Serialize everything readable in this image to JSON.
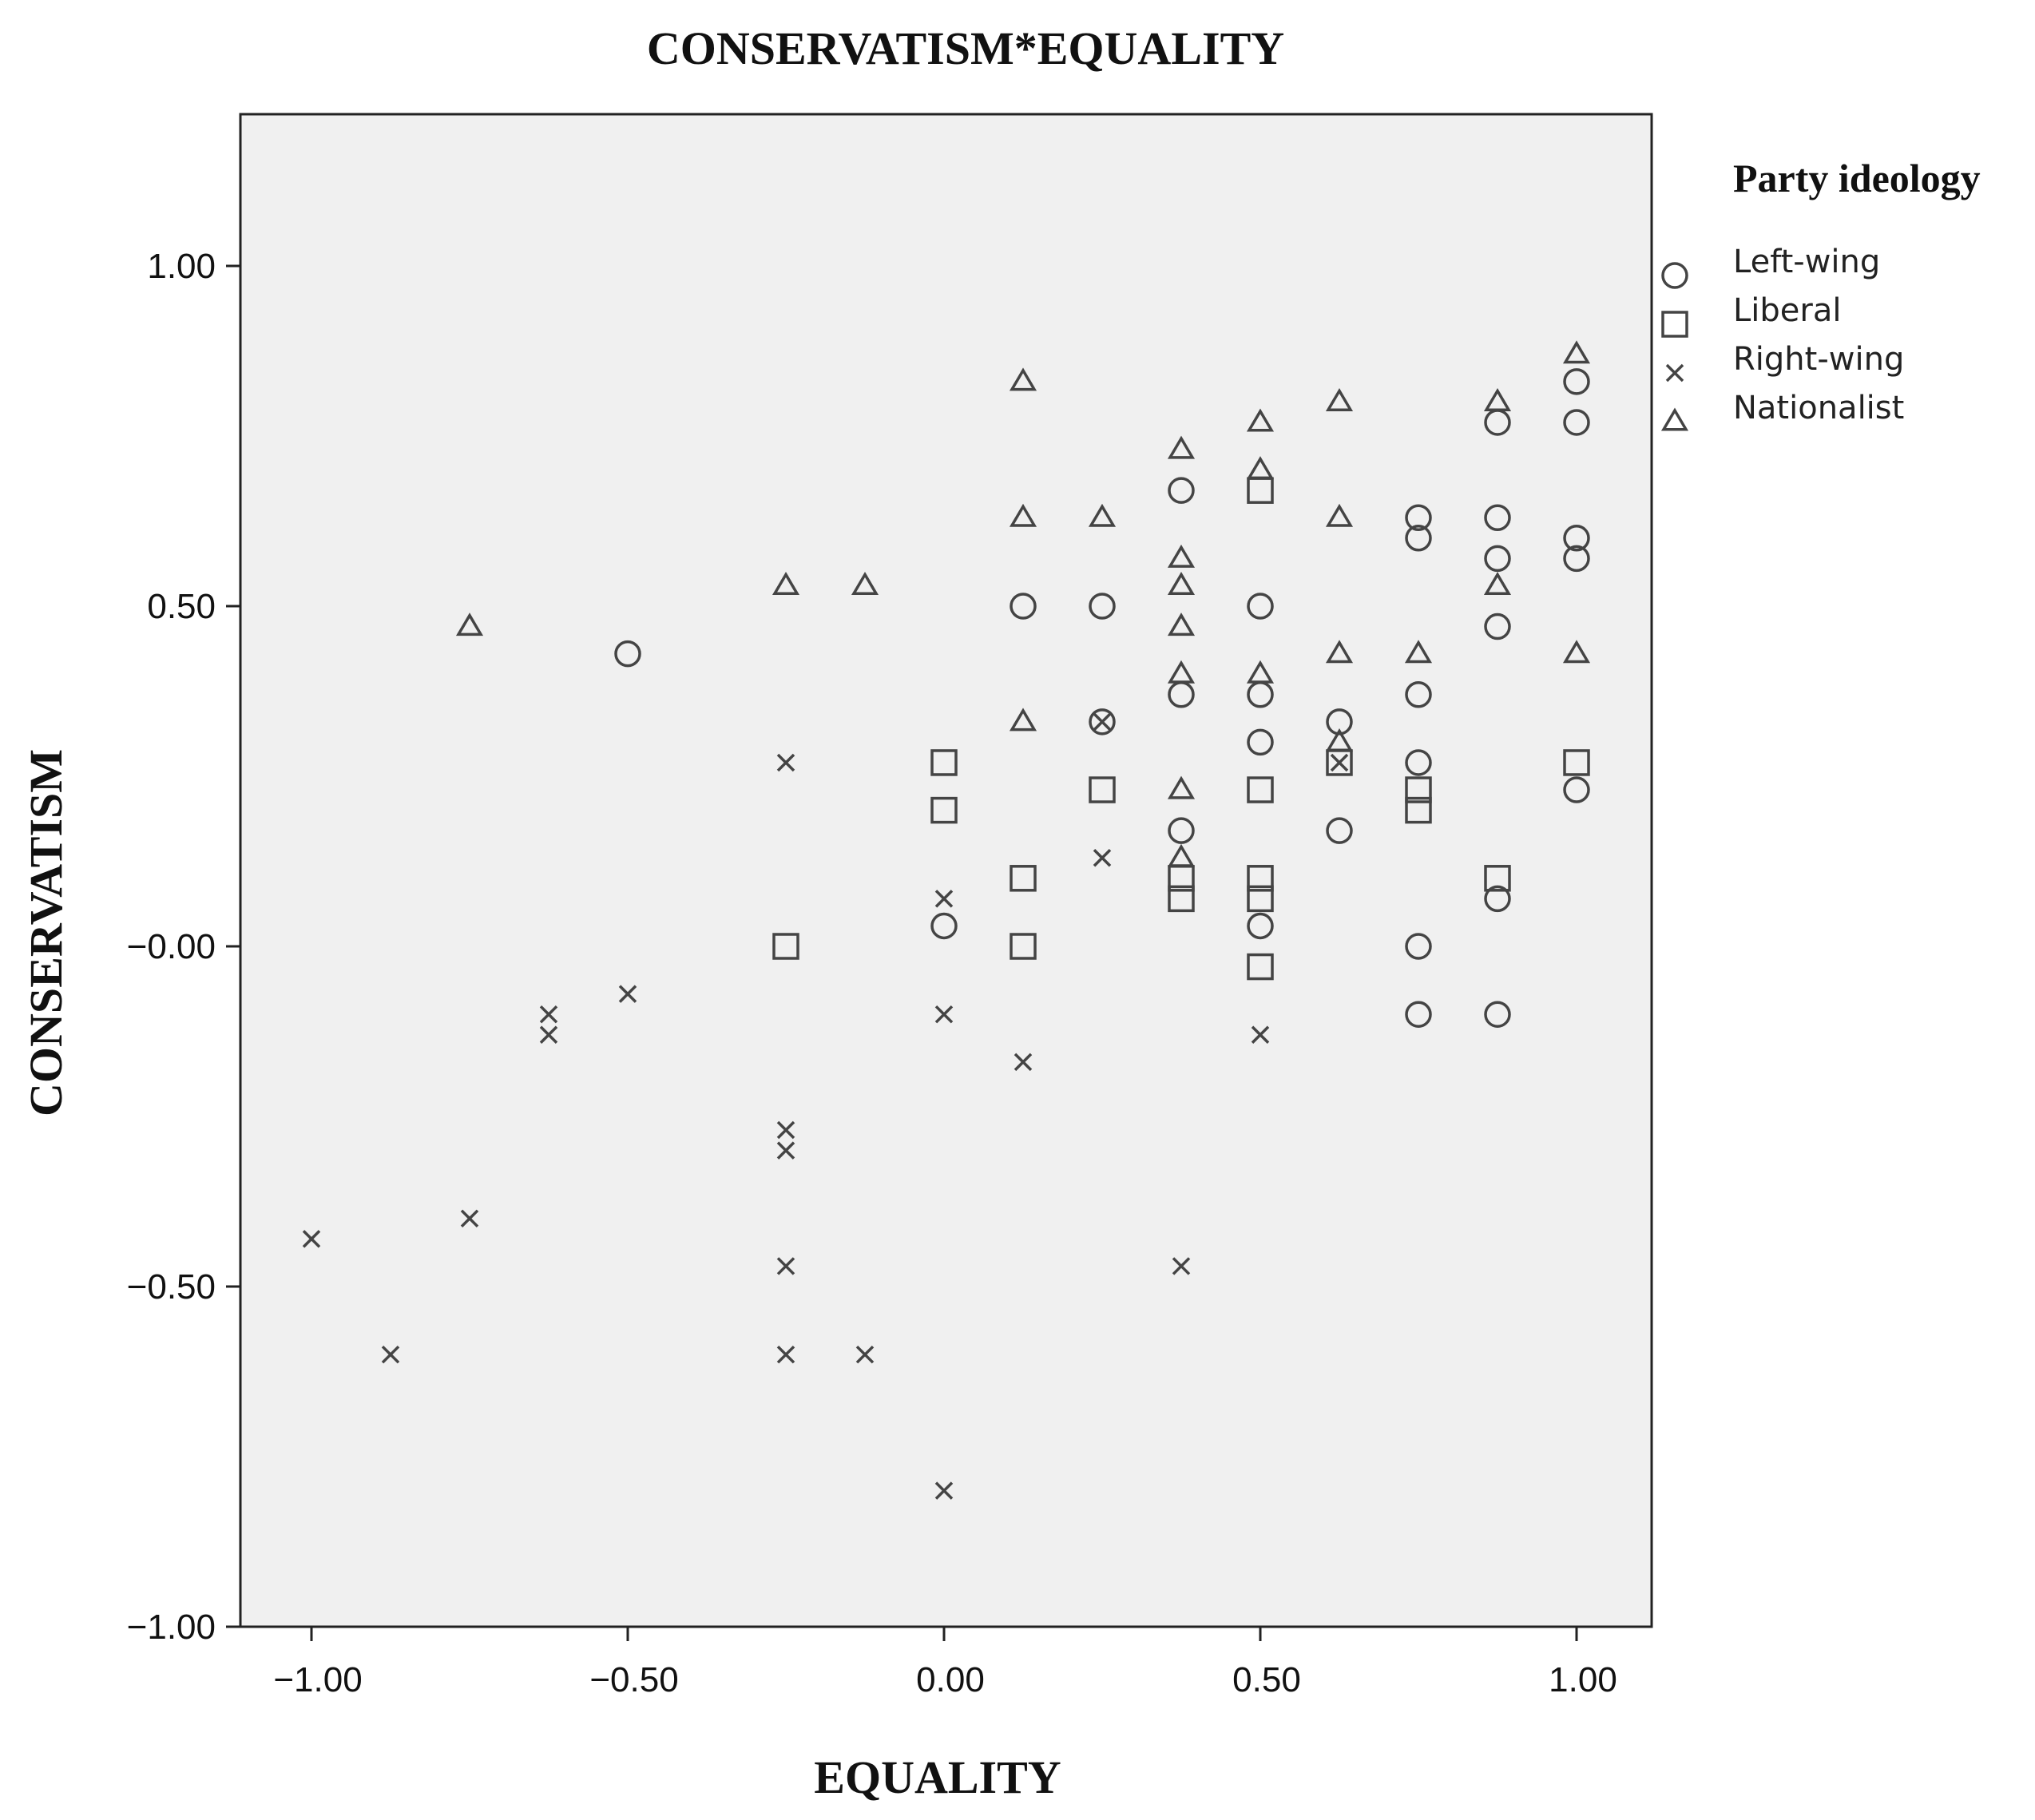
{
  "chart_data": {
    "type": "scatter",
    "title": "CONSERVATISM*EQUALITY",
    "xlabel": "EQUALITY",
    "ylabel": "CONSERVATISM",
    "xlim": [
      -1.1,
      1.1
    ],
    "ylim": [
      -1.0,
      1.22
    ],
    "x_ticks": [
      -1.0,
      -0.5,
      0.0,
      0.5,
      1.0
    ],
    "x_tick_labels": [
      "−1.00",
      "−0.50",
      "0.00",
      "0.50",
      "1.00"
    ],
    "y_ticks": [
      1.0,
      0.5,
      0.0,
      -0.5,
      -1.0
    ],
    "y_tick_labels": [
      "1.00",
      "0.50",
      "−0.00",
      "−0.50",
      "−1.00"
    ],
    "grid": false,
    "legend_title": "Party ideology",
    "legend_position": "right",
    "series": [
      {
        "name": "Left-wing",
        "marker": "circle",
        "points": [
          [
            -0.5,
            0.43
          ],
          [
            0.0,
            0.03
          ],
          [
            0.125,
            0.5
          ],
          [
            0.25,
            0.5
          ],
          [
            0.25,
            0.33
          ],
          [
            0.375,
            0.67
          ],
          [
            0.375,
            0.37
          ],
          [
            0.375,
            0.17
          ],
          [
            0.5,
            0.5
          ],
          [
            0.5,
            0.37
          ],
          [
            0.5,
            0.3
          ],
          [
            0.5,
            0.03
          ],
          [
            0.625,
            0.33
          ],
          [
            0.625,
            0.17
          ],
          [
            0.75,
            0.63
          ],
          [
            0.75,
            0.6
          ],
          [
            0.75,
            0.37
          ],
          [
            0.75,
            0.27
          ],
          [
            0.75,
            0.0
          ],
          [
            0.75,
            -0.1
          ],
          [
            0.875,
            0.77
          ],
          [
            0.875,
            0.63
          ],
          [
            0.875,
            0.57
          ],
          [
            0.875,
            0.47
          ],
          [
            0.875,
            0.07
          ],
          [
            0.875,
            -0.1
          ],
          [
            1.0,
            0.83
          ],
          [
            1.0,
            0.77
          ],
          [
            1.0,
            0.6
          ],
          [
            1.0,
            0.57
          ],
          [
            1.0,
            0.23
          ]
        ]
      },
      {
        "name": "Liberal",
        "marker": "square",
        "points": [
          [
            -0.25,
            0.0
          ],
          [
            0.0,
            0.27
          ],
          [
            0.0,
            0.2
          ],
          [
            0.125,
            0.1
          ],
          [
            0.125,
            0.0
          ],
          [
            0.25,
            0.23
          ],
          [
            0.375,
            0.1
          ],
          [
            0.375,
            0.07
          ],
          [
            0.5,
            0.67
          ],
          [
            0.5,
            0.23
          ],
          [
            0.5,
            0.1
          ],
          [
            0.5,
            0.07
          ],
          [
            0.5,
            -0.03
          ],
          [
            0.625,
            0.27
          ],
          [
            0.75,
            0.23
          ],
          [
            0.75,
            0.2
          ],
          [
            0.875,
            0.1
          ],
          [
            1.0,
            0.27
          ]
        ]
      },
      {
        "name": "Right-wing",
        "marker": "x",
        "points": [
          [
            -1.0,
            -0.43
          ],
          [
            -0.875,
            -0.6
          ],
          [
            -0.75,
            -0.4
          ],
          [
            -0.625,
            -0.1
          ],
          [
            -0.625,
            -0.13
          ],
          [
            -0.5,
            -0.07
          ],
          [
            -0.25,
            0.27
          ],
          [
            -0.25,
            -0.27
          ],
          [
            -0.25,
            -0.3
          ],
          [
            -0.25,
            -0.47
          ],
          [
            -0.25,
            -0.6
          ],
          [
            -0.125,
            -0.6
          ],
          [
            0.0,
            0.07
          ],
          [
            0.0,
            -0.1
          ],
          [
            0.0,
            -0.8
          ],
          [
            0.125,
            -0.17
          ],
          [
            0.25,
            0.13
          ],
          [
            0.25,
            0.33
          ],
          [
            0.375,
            -0.47
          ],
          [
            0.5,
            -0.13
          ],
          [
            0.625,
            0.27
          ]
        ]
      },
      {
        "name": "Nationalist",
        "marker": "triangle",
        "points": [
          [
            -0.75,
            0.47
          ],
          [
            -0.25,
            0.53
          ],
          [
            -0.125,
            0.53
          ],
          [
            0.125,
            0.83
          ],
          [
            0.125,
            0.63
          ],
          [
            0.125,
            0.33
          ],
          [
            0.25,
            0.63
          ],
          [
            0.375,
            0.73
          ],
          [
            0.375,
            0.57
          ],
          [
            0.375,
            0.53
          ],
          [
            0.375,
            0.47
          ],
          [
            0.375,
            0.4
          ],
          [
            0.375,
            0.23
          ],
          [
            0.375,
            0.13
          ],
          [
            0.5,
            0.77
          ],
          [
            0.5,
            0.7
          ],
          [
            0.5,
            0.4
          ],
          [
            0.625,
            0.8
          ],
          [
            0.625,
            0.63
          ],
          [
            0.625,
            0.43
          ],
          [
            0.625,
            0.3
          ],
          [
            0.75,
            0.43
          ],
          [
            0.875,
            0.8
          ],
          [
            0.875,
            0.53
          ],
          [
            1.0,
            0.87
          ],
          [
            1.0,
            0.43
          ]
        ]
      }
    ]
  },
  "colors": {
    "plot_background": "#f0f0f0",
    "marker_stroke": "#444444",
    "axis": "#222222"
  }
}
